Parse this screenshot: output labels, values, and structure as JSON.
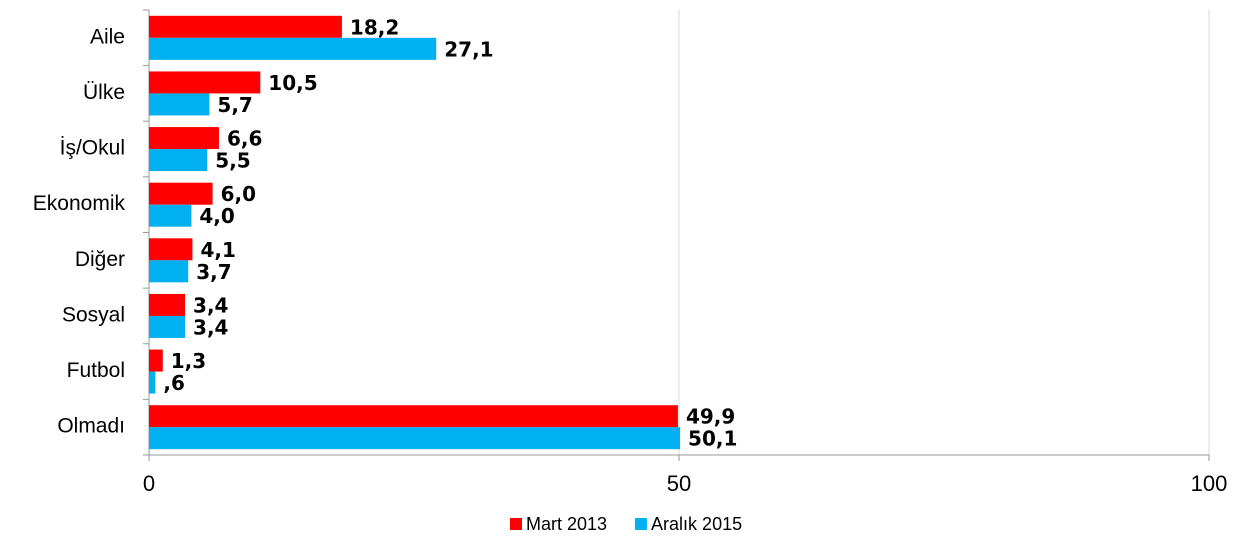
{
  "chart_data": {
    "type": "hbar",
    "categories": [
      "Aile",
      "Ülke",
      "İş/Okul",
      "Ekonomik",
      "Diğer",
      "Sosyal",
      "Futbol",
      "Olmadı"
    ],
    "series": [
      {
        "name": "Mart 2013",
        "color": "#ff0000",
        "values": [
          18.2,
          10.5,
          6.6,
          6.0,
          4.1,
          3.4,
          1.3,
          49.9
        ],
        "value_labels": [
          "18,2",
          "10,5",
          "6,6",
          "6,0",
          "4,1",
          "3,4",
          "1,3",
          "49,9"
        ]
      },
      {
        "name": "Aralık 2015",
        "color": "#00b0f0",
        "values": [
          27.1,
          5.7,
          5.5,
          4.0,
          3.7,
          3.4,
          0.6,
          50.1
        ],
        "value_labels": [
          "27,1",
          "5,7",
          "5,5",
          "4,0",
          "3,7",
          "3,4",
          ",6",
          "50,1"
        ]
      }
    ],
    "xlim": [
      0,
      100
    ],
    "xticks": [
      0,
      50,
      100
    ],
    "grid": true,
    "legend": "bottom"
  }
}
